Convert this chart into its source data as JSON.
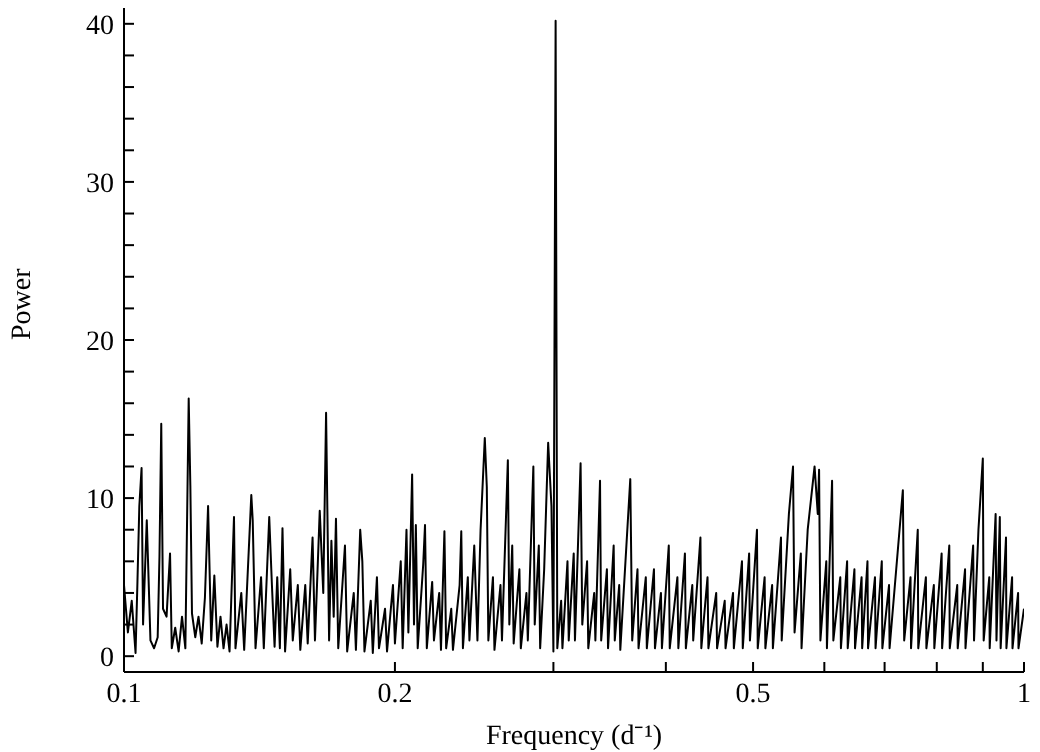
{
  "chart_data": {
    "type": "line",
    "xlabel": "Frequency (d⁻¹)",
    "ylabel": "Power",
    "log": "x",
    "marker": "none",
    "xlim": [
      0.1,
      1
    ],
    "xticks": [
      0.1,
      0.2,
      {
        "value": 0.3,
        "label": null
      },
      {
        "value": 0.4,
        "label": null
      },
      0.5,
      {
        "value": 0.6,
        "label": null
      },
      {
        "value": 0.7,
        "label": null
      },
      {
        "value": 0.8,
        "label": null
      },
      {
        "value": 0.9,
        "label": null
      },
      1
    ],
    "ylim": [
      -1,
      41
    ],
    "yticks": [
      0,
      {
        "value": 2,
        "label": null
      },
      {
        "value": 4,
        "label": null
      },
      {
        "value": 6,
        "label": null
      },
      {
        "value": 8,
        "label": null
      },
      10,
      {
        "value": 12,
        "label": null
      },
      {
        "value": 14,
        "label": null
      },
      {
        "value": 16,
        "label": null
      },
      {
        "value": 18,
        "label": null
      },
      20,
      {
        "value": 22,
        "label": null
      },
      {
        "value": 24,
        "label": null
      },
      {
        "value": 26,
        "label": null
      },
      {
        "value": 28,
        "label": null
      },
      30,
      {
        "value": 32,
        "label": null
      },
      {
        "value": 34,
        "label": null
      },
      {
        "value": 36,
        "label": null
      },
      {
        "value": 38,
        "label": null
      },
      40
    ],
    "x": [
      0.1,
      0.101,
      0.102,
      0.103,
      0.1035,
      0.104,
      0.1046,
      0.105,
      0.106,
      0.107,
      0.108,
      0.109,
      0.1095,
      0.11,
      0.1105,
      0.1115,
      0.1125,
      0.113,
      0.114,
      0.115,
      0.116,
      0.117,
      0.118,
      0.1185,
      0.119,
      0.12,
      0.121,
      0.122,
      0.123,
      0.124,
      0.125,
      0.126,
      0.127,
      0.128,
      0.129,
      0.13,
      0.131,
      0.1325,
      0.133,
      0.135,
      0.136,
      0.1385,
      0.139,
      0.14,
      0.142,
      0.143,
      0.145,
      0.146,
      0.147,
      0.148,
      0.149,
      0.15,
      0.151,
      0.153,
      0.154,
      0.156,
      0.157,
      0.159,
      0.16,
      0.162,
      0.163,
      0.165,
      0.1665,
      0.1677,
      0.169,
      0.17,
      0.171,
      0.172,
      0.173,
      0.176,
      0.177,
      0.18,
      0.181,
      0.183,
      0.184,
      0.185,
      0.188,
      0.189,
      0.191,
      0.192,
      0.195,
      0.196,
      0.199,
      0.2,
      0.203,
      0.204,
      0.206,
      0.207,
      0.209,
      0.21,
      0.211,
      0.212,
      0.215,
      0.216,
      0.217,
      0.22,
      0.221,
      0.224,
      0.225,
      0.227,
      0.228,
      0.231,
      0.232,
      0.236,
      0.237,
      0.238,
      0.241,
      0.242,
      0.245,
      0.247,
      0.249,
      0.2517,
      0.253,
      0.254,
      0.257,
      0.258,
      0.262,
      0.263,
      0.267,
      0.268,
      0.27,
      0.271,
      0.275,
      0.276,
      0.28,
      0.281,
      0.285,
      0.286,
      0.289,
      0.29,
      0.293,
      0.296,
      0.2985,
      0.3,
      0.3017,
      0.303,
      0.306,
      0.307,
      0.311,
      0.312,
      0.316,
      0.317,
      0.3216,
      0.323,
      0.327,
      0.328,
      0.333,
      0.334,
      0.338,
      0.339,
      0.344,
      0.345,
      0.35,
      0.351,
      0.355,
      0.356,
      0.3652,
      0.367,
      0.372,
      0.373,
      0.38,
      0.381,
      0.388,
      0.389,
      0.395,
      0.396,
      0.403,
      0.404,
      0.412,
      0.413,
      0.42,
      0.421,
      0.428,
      0.429,
      0.437,
      0.438,
      0.445,
      0.446,
      0.455,
      0.456,
      0.465,
      0.466,
      0.475,
      0.476,
      0.486,
      0.487,
      0.495,
      0.496,
      0.505,
      0.506,
      0.515,
      0.516,
      0.525,
      0.526,
      0.537,
      0.538,
      0.548,
      0.5538,
      0.556,
      0.565,
      0.566,
      0.575,
      0.5852,
      0.59,
      0.592,
      0.594,
      0.603,
      0.604,
      0.612,
      0.614,
      0.625,
      0.626,
      0.636,
      0.637,
      0.648,
      0.649,
      0.66,
      0.661,
      0.67,
      0.671,
      0.683,
      0.684,
      0.695,
      0.696,
      0.708,
      0.709,
      0.7335,
      0.736,
      0.748,
      0.749,
      0.762,
      0.763,
      0.778,
      0.779,
      0.794,
      0.795,
      0.81,
      0.811,
      0.826,
      0.827,
      0.843,
      0.844,
      0.86,
      0.861,
      0.878,
      0.88,
      0.89,
      0.9,
      0.902,
      0.915,
      0.916,
      0.93,
      0.932,
      0.94,
      0.942,
      0.955,
      0.956,
      0.97,
      0.971,
      0.985,
      0.986,
      1
    ],
    "series": [
      {
        "color": "#000000",
        "values": [
          4.5,
          1.5,
          3.5,
          0.2,
          4.7,
          9.5,
          11.9,
          2,
          8.6,
          1,
          0.5,
          1.2,
          6.3,
          14.7,
          3,
          2.5,
          6.5,
          0.5,
          1.8,
          0.3,
          2.5,
          0.5,
          16.3,
          10.8,
          2.7,
          1.2,
          2.5,
          0.8,
          3.7,
          9.5,
          1,
          5.1,
          0.6,
          2.5,
          0.5,
          2,
          0.3,
          8.8,
          0.5,
          4,
          0.4,
          10.2,
          8.6,
          0.5,
          5,
          0.5,
          8.8,
          4.5,
          0.6,
          5,
          0.5,
          8.1,
          0.3,
          5.5,
          1,
          4.5,
          0.4,
          4.5,
          0.8,
          7.5,
          1,
          9.2,
          4,
          15.4,
          1,
          7.3,
          2.5,
          8.7,
          0.5,
          7,
          0.3,
          4,
          0.4,
          8,
          6,
          0.3,
          3.5,
          0.2,
          5,
          0.5,
          3,
          0.3,
          4.5,
          0.8,
          6,
          0.5,
          8,
          1.5,
          11.5,
          2,
          8.3,
          0.5,
          5.8,
          8.3,
          0.5,
          4.7,
          1,
          4,
          0.4,
          7.9,
          0.5,
          3,
          0.4,
          4.5,
          7.9,
          0.5,
          5,
          1,
          7,
          1,
          8,
          13.8,
          10.7,
          1,
          5,
          0.4,
          4.5,
          1,
          12.4,
          2,
          7,
          0.8,
          5.5,
          0.5,
          4,
          1,
          12,
          2,
          7,
          0.5,
          5.5,
          13.5,
          9.5,
          0.3,
          40.2,
          0.5,
          3.5,
          0.5,
          6,
          1,
          6.5,
          1,
          12.2,
          2,
          6,
          0.5,
          4,
          1,
          11.1,
          1,
          5.5,
          0.5,
          7,
          1,
          4.5,
          0.4,
          11.2,
          1,
          5.5,
          0.5,
          5,
          0.5,
          5.5,
          0.5,
          4,
          0.5,
          7,
          0.5,
          5,
          0.5,
          6.5,
          0.5,
          4.5,
          1,
          7.5,
          0.5,
          5,
          0.5,
          4,
          0.5,
          3.5,
          0.5,
          4,
          0.5,
          6,
          0.5,
          6.5,
          1,
          8,
          0.5,
          5,
          0.5,
          4.5,
          0.5,
          7.5,
          1,
          9,
          12,
          1.5,
          6.5,
          0.5,
          8,
          12,
          9,
          11.8,
          1,
          6,
          0.5,
          11.1,
          1,
          5,
          0.5,
          6,
          0.5,
          5.5,
          0.5,
          5,
          0.5,
          6,
          0.5,
          5,
          0.5,
          6,
          0.5,
          4.5,
          0.5,
          10.5,
          1,
          5,
          0.5,
          8,
          0.5,
          5,
          0.5,
          4.5,
          0.5,
          6.5,
          0.5,
          7,
          0.5,
          4.5,
          0.5,
          5.5,
          0.5,
          7,
          1,
          8,
          12.5,
          1,
          5,
          0.5,
          9,
          1,
          8.8,
          0.5,
          7.5,
          0.5,
          5,
          0.5,
          4,
          0.5,
          3
        ]
      }
    ]
  }
}
